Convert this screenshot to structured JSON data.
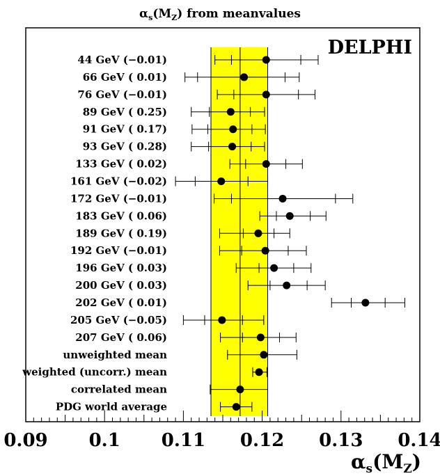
{
  "chart_data": {
    "type": "scatter",
    "title": "α_s(M_Z) from meanvalues",
    "title_main": "α",
    "title_sub": "s",
    "title_tail": "(M",
    "title_sub2": "Z",
    "title_end": ") from meanvalues",
    "watermark": "DELPHI",
    "xlabel_main": "α",
    "xlabel_sub": "s",
    "xlabel_mid": "(M",
    "xlabel_sub2": "Z",
    "xlabel_end": ")",
    "xlim": [
      0.09,
      0.14
    ],
    "xticks": [
      "0.09",
      "0.1",
      "0.11",
      "0.12",
      "0.13",
      "0.14"
    ],
    "band": {
      "x_min": 0.1135,
      "x_max": 0.1207,
      "center": 0.1172,
      "color": "#ffff00"
    },
    "points": [
      {
        "label": "44 GeV  (−0.01)",
        "value": 0.1205,
        "inner": [
          0.1161,
          0.1249
        ],
        "outer": [
          0.114,
          0.1271
        ]
      },
      {
        "label": "66 GeV  ( 0.01)",
        "value": 0.1177,
        "inner": [
          0.1118,
          0.1229
        ],
        "outer": [
          0.1102,
          0.1247
        ]
      },
      {
        "label": "76 GeV  (−0.01)",
        "value": 0.1205,
        "inner": [
          0.1164,
          0.1246
        ],
        "outer": [
          0.1143,
          0.1267
        ]
      },
      {
        "label": "89 GeV  ( 0.25)",
        "value": 0.116,
        "inner": [
          0.1133,
          0.1185
        ],
        "outer": [
          0.111,
          0.1203
        ]
      },
      {
        "label": "91 GeV  ( 0.17)",
        "value": 0.1163,
        "inner": [
          0.1131,
          0.1187
        ],
        "outer": [
          0.1111,
          0.1204
        ]
      },
      {
        "label": "93 GeV  ( 0.28)",
        "value": 0.1162,
        "inner": [
          0.1132,
          0.1186
        ],
        "outer": [
          0.111,
          0.1203
        ]
      },
      {
        "label": "133 GeV  ( 0.02)",
        "value": 0.1205,
        "inner": [
          0.1179,
          0.123
        ],
        "outer": [
          0.1159,
          0.1251
        ]
      },
      {
        "label": "161 GeV  (−0.02)",
        "value": 0.1148,
        "inner": [
          0.1115,
          0.1182
        ],
        "outer": [
          0.109,
          0.1207
        ]
      },
      {
        "label": "172 GeV  (−0.01)",
        "value": 0.1226,
        "inner": [
          0.1161,
          0.1293
        ],
        "outer": [
          0.1139,
          0.1315
        ]
      },
      {
        "label": "183 GeV  ( 0.06)",
        "value": 0.1235,
        "inner": [
          0.1218,
          0.1261
        ],
        "outer": [
          0.1197,
          0.1281
        ]
      },
      {
        "label": "189 GeV  ( 0.19)",
        "value": 0.1195,
        "inner": [
          0.1176,
          0.1215
        ],
        "outer": [
          0.1146,
          0.1235
        ]
      },
      {
        "label": "192 GeV  (−0.01)",
        "value": 0.1204,
        "inner": [
          0.1174,
          0.1233
        ],
        "outer": [
          0.1146,
          0.1256
        ]
      },
      {
        "label": "196 GeV  ( 0.03)",
        "value": 0.1215,
        "inner": [
          0.1196,
          0.124
        ],
        "outer": [
          0.1167,
          0.1262
        ]
      },
      {
        "label": "200 GeV  ( 0.03)",
        "value": 0.1231,
        "inner": [
          0.121,
          0.1257
        ],
        "outer": [
          0.1182,
          0.128
        ]
      },
      {
        "label": "202 GeV  ( 0.01)",
        "value": 0.1331,
        "inner": [
          0.1313,
          0.1356
        ],
        "outer": [
          0.1288,
          0.1381
        ]
      },
      {
        "label": "205 GeV  (−0.05)",
        "value": 0.1149,
        "inner": [
          0.1127,
          0.1175
        ],
        "outer": [
          0.11,
          0.1202
        ]
      },
      {
        "label": "207 GeV  ( 0.06)",
        "value": 0.1198,
        "inner": [
          0.1175,
          0.1222
        ],
        "outer": [
          0.1147,
          0.1243
        ]
      },
      {
        "label": "unweighted mean",
        "value": 0.1202,
        "inner": null,
        "outer": [
          0.1156,
          0.1244
        ]
      },
      {
        "label": "weighted (uncorr.) mean",
        "value": 0.1196,
        "inner": null,
        "outer": [
          0.1188,
          0.1206
        ]
      },
      {
        "label": "correlated mean",
        "value": 0.1172,
        "inner": null,
        "outer": [
          0.1134,
          0.1207
        ]
      },
      {
        "label": "PDG world average",
        "value": 0.1167,
        "inner": null,
        "outer": [
          0.1147,
          0.1187
        ]
      }
    ]
  }
}
